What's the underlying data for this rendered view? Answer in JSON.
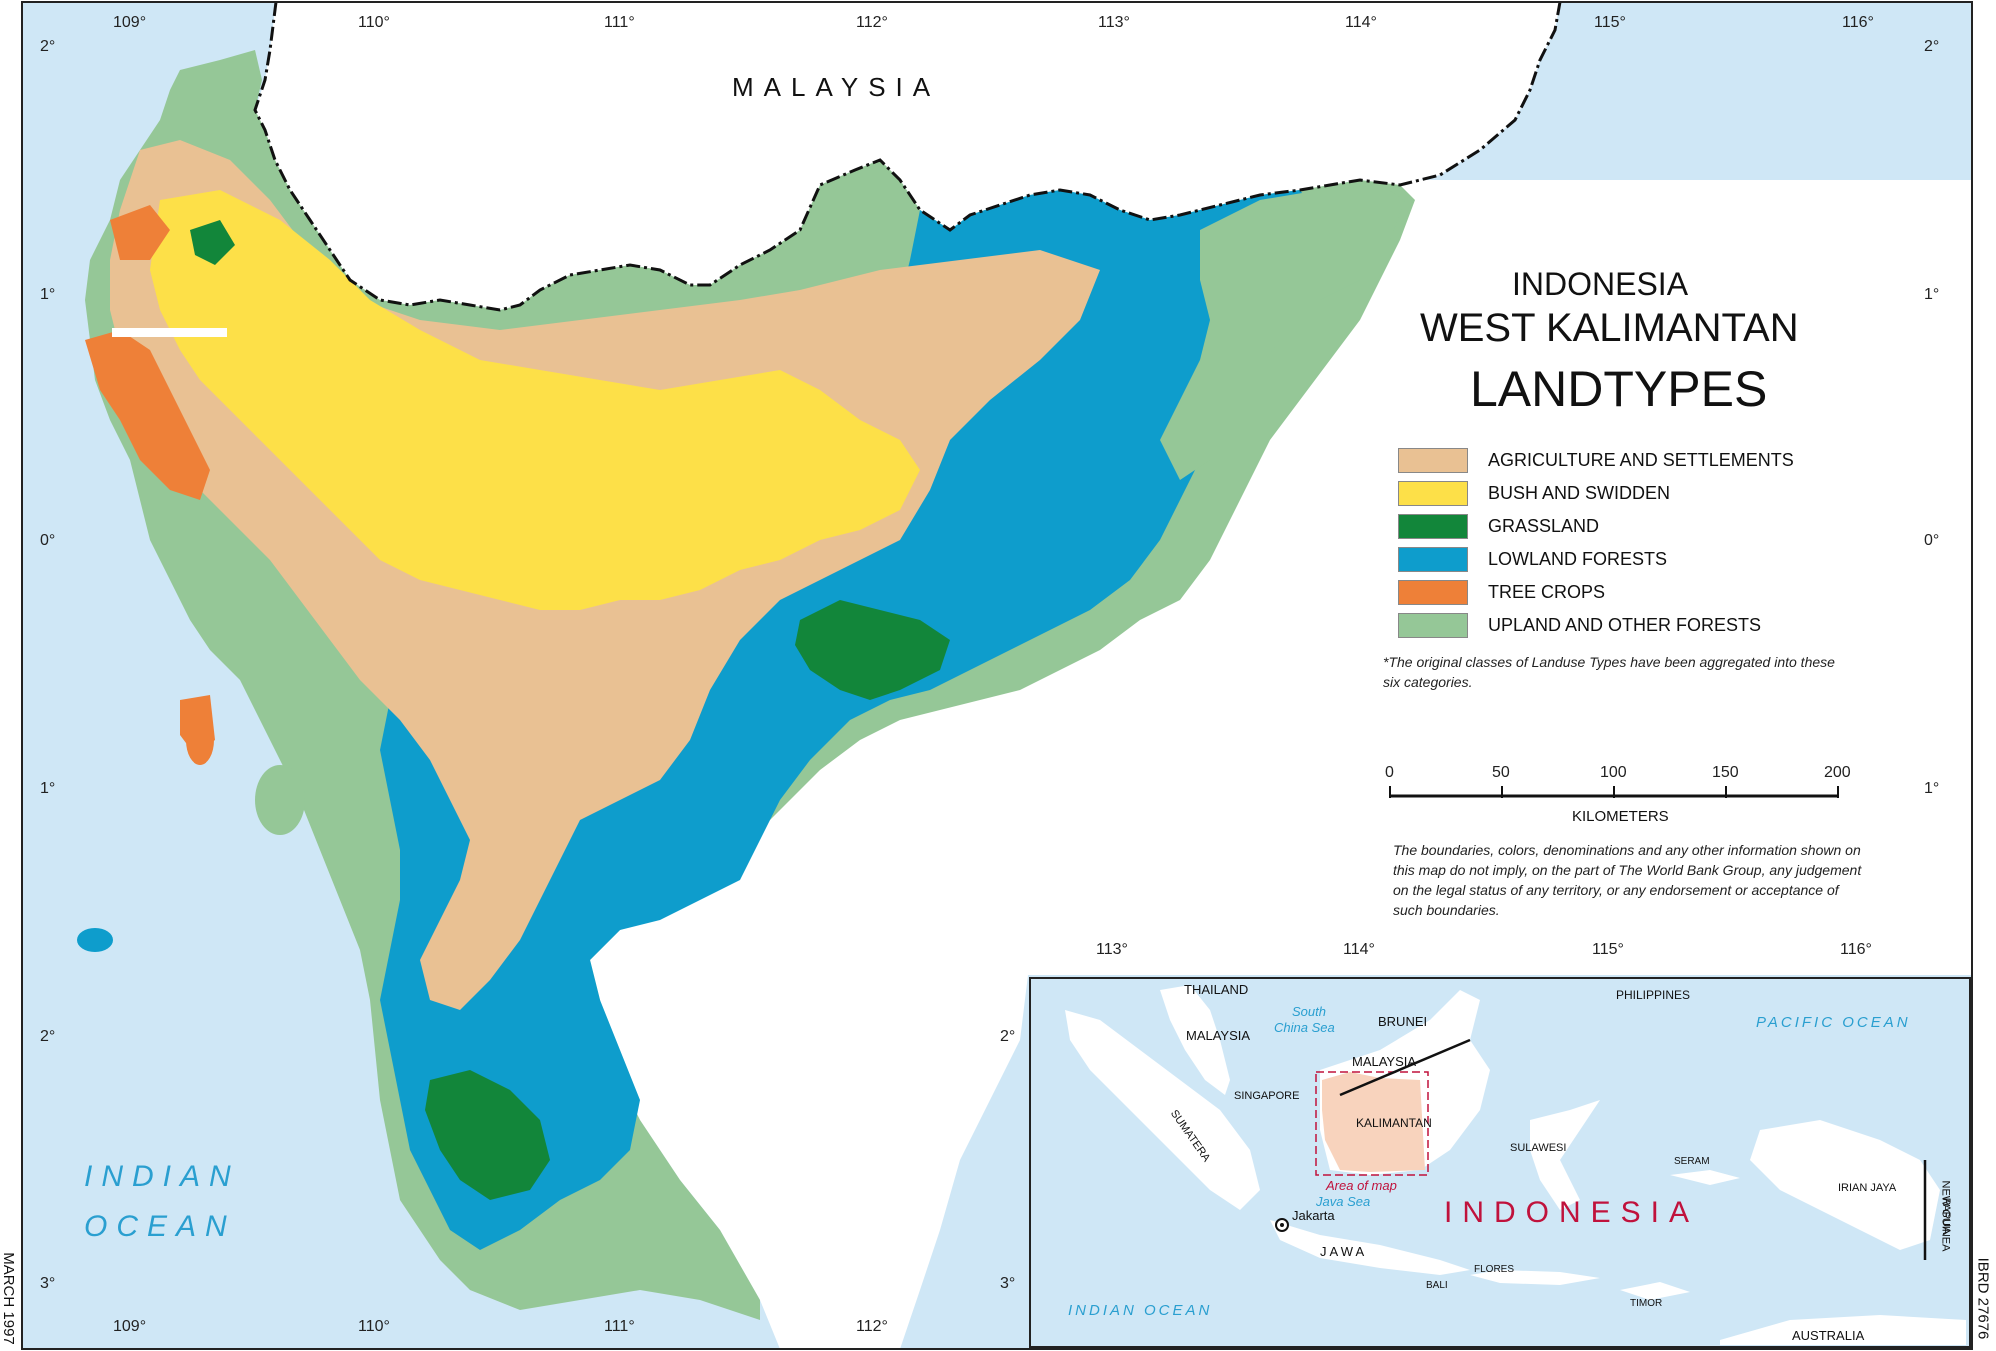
{
  "map": {
    "title": {
      "line1": "INDONESIA",
      "line2": "WEST KALIMANTAN",
      "line3": "LANDTYPES"
    },
    "labels": {
      "malaysia": "MALAYSIA",
      "indian_ocean_1": "INDIAN",
      "indian_ocean_2": "OCEAN"
    },
    "longitudes_top": [
      "109°",
      "110°",
      "111°",
      "112°",
      "113°",
      "114°",
      "115°",
      "116°"
    ],
    "longitudes_bottom": [
      "109°",
      "110°",
      "111°",
      "112°"
    ],
    "latitudes_left": [
      "2°",
      "1°",
      "0°",
      "1°",
      "2°",
      "3°"
    ],
    "latitudes_right": [
      "2°",
      "1°",
      "0°",
      "1°"
    ],
    "inset_longitudes": [
      "113°",
      "114°",
      "115°",
      "116°"
    ],
    "inset_latitudes": [
      "2°",
      "3°"
    ],
    "legend": [
      {
        "label": "AGRICULTURE AND SETTLEMENTS",
        "color": "#e9c193"
      },
      {
        "label": "BUSH AND SWIDDEN",
        "color": "#fde048"
      },
      {
        "label": "GRASSLAND",
        "color": "#12863a"
      },
      {
        "label": "LOWLAND FORESTS",
        "color": "#0e9dcc"
      },
      {
        "label": "TREE CROPS",
        "color": "#ee8038"
      },
      {
        "label": "UPLAND AND OTHER FORESTS",
        "color": "#95c797"
      }
    ],
    "legend_note": "*The original classes of Landuse Types have been aggregated into these six categories.",
    "scale": {
      "ticks": [
        "0",
        "50",
        "100",
        "150",
        "200"
      ],
      "unit": "KILOMETERS"
    },
    "disclaimer": "The boundaries, colors, denominations and any other information shown on this map do not imply, on the part of The World Bank Group, any judgement on the legal status of any territory, or any endorsement or acceptance of such boundaries.",
    "side_left": "MARCH 1997",
    "side_right": "IBRD 27676",
    "colors": {
      "sea": "#cfe7f6",
      "land_outside": "#ffffff",
      "border": "#111111",
      "indonesia_label": "#c0123c",
      "area_of_map": "#c0123c"
    }
  },
  "inset": {
    "labels": {
      "thailand": "THAILAND",
      "philippines": "PHILIPPINES",
      "south_china_sea_1": "South",
      "south_china_sea_2": "China Sea",
      "brunei": "BRUNEI",
      "malaysia_w": "MALAYSIA",
      "malaysia_e": "MALAYSIA",
      "singapore": "SINGAPORE",
      "sumatera": "SUMATERA",
      "kalimantan": "KALIMANTAN",
      "area_of_map": "Area of map",
      "java_sea": "Java Sea",
      "jakarta": "Jakarta",
      "jawa": "JAWA",
      "sulawesi": "SULAWESI",
      "seram": "SERAM",
      "irian_jaya": "IRIAN JAYA",
      "papua_1": "PAPUA",
      "papua_2": "NEW GUINEA",
      "bali": "BALI",
      "flores": "FLORES",
      "timor": "TIMOR",
      "australia": "AUSTRALIA",
      "pacific_ocean": "PACIFIC OCEAN",
      "indian_ocean": "INDIAN OCEAN",
      "indonesia": "INDONESIA"
    }
  }
}
